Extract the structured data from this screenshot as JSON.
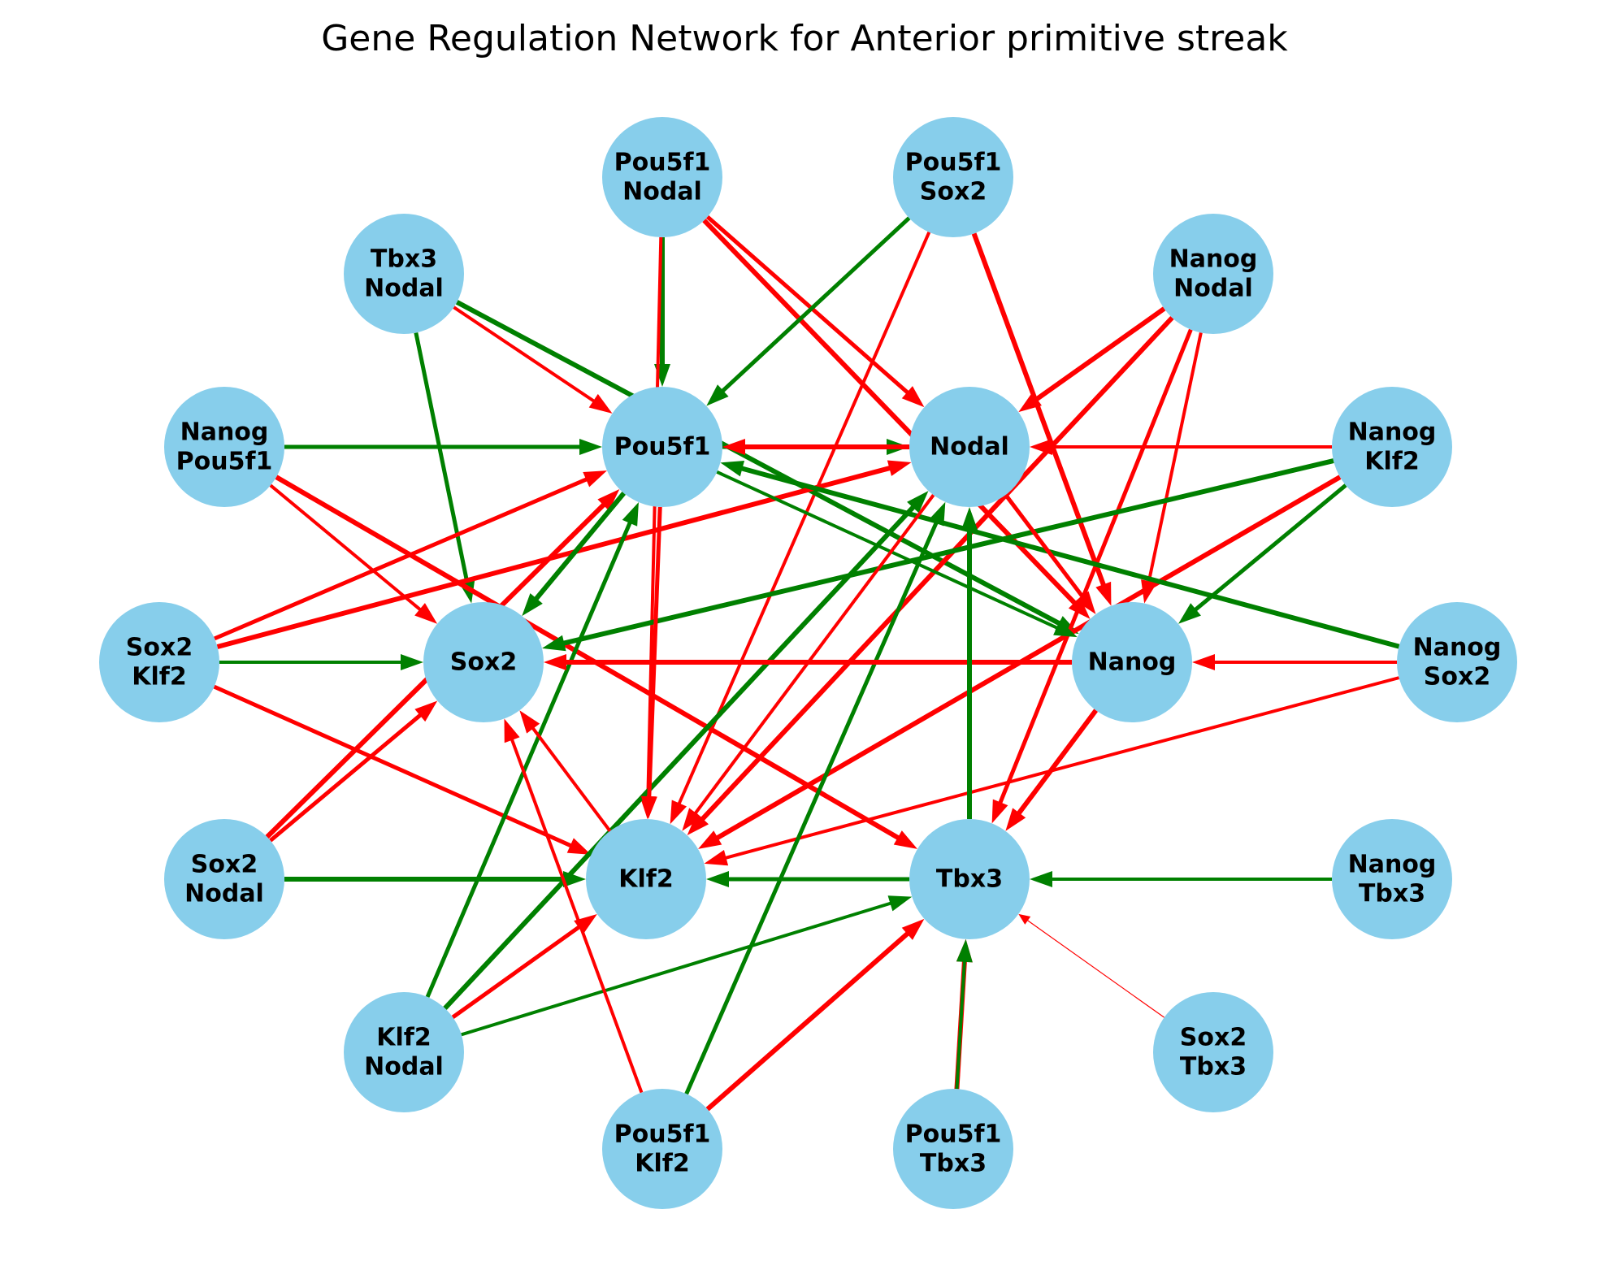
{
  "title": "Gene Regulation Network for Anterior primitive streak",
  "colors": {
    "node": "#87CEEB",
    "activation": "#008000",
    "repression": "#FF0000"
  },
  "nodes": [
    {
      "id": "Pou5f1",
      "lines": [
        "Pou5f1"
      ]
    },
    {
      "id": "Nodal",
      "lines": [
        "Nodal"
      ]
    },
    {
      "id": "Sox2",
      "lines": [
        "Sox2"
      ]
    },
    {
      "id": "Nanog",
      "lines": [
        "Nanog"
      ]
    },
    {
      "id": "Klf2",
      "lines": [
        "Klf2"
      ]
    },
    {
      "id": "Tbx3",
      "lines": [
        "Tbx3"
      ]
    },
    {
      "id": "Pou5f1_Nodal",
      "lines": [
        "Pou5f1",
        "Nodal"
      ]
    },
    {
      "id": "Pou5f1_Sox2",
      "lines": [
        "Pou5f1",
        "Sox2"
      ]
    },
    {
      "id": "Tbx3_Nodal",
      "lines": [
        "Tbx3",
        "Nodal"
      ]
    },
    {
      "id": "Nanog_Nodal",
      "lines": [
        "Nanog",
        "Nodal"
      ]
    },
    {
      "id": "Nanog_Pou5f1",
      "lines": [
        "Nanog",
        "Pou5f1"
      ]
    },
    {
      "id": "Nanog_Klf2",
      "lines": [
        "Nanog",
        "Klf2"
      ]
    },
    {
      "id": "Sox2_Klf2",
      "lines": [
        "Sox2",
        "Klf2"
      ]
    },
    {
      "id": "Nanog_Sox2",
      "lines": [
        "Nanog",
        "Sox2"
      ]
    },
    {
      "id": "Sox2_Nodal",
      "lines": [
        "Sox2",
        "Nodal"
      ]
    },
    {
      "id": "Nanog_Tbx3",
      "lines": [
        "Nanog",
        "Tbx3"
      ]
    },
    {
      "id": "Klf2_Nodal",
      "lines": [
        "Klf2",
        "Nodal"
      ]
    },
    {
      "id": "Sox2_Tbx3",
      "lines": [
        "Sox2",
        "Tbx3"
      ]
    },
    {
      "id": "Pou5f1_Klf2",
      "lines": [
        "Pou5f1",
        "Klf2"
      ]
    },
    {
      "id": "Pou5f1_Tbx3",
      "lines": [
        "Pou5f1",
        "Tbx3"
      ]
    }
  ],
  "edges": [
    {
      "from": "Pou5f1_Nodal",
      "to": "Pou5f1",
      "type": "activation"
    },
    {
      "from": "Pou5f1_Nodal",
      "to": "Klf2",
      "type": "repression"
    },
    {
      "from": "Pou5f1_Nodal",
      "to": "Nodal",
      "type": "repression"
    },
    {
      "from": "Pou5f1_Nodal",
      "to": "Nanog",
      "type": "repression"
    },
    {
      "from": "Pou5f1_Sox2",
      "to": "Pou5f1",
      "type": "activation"
    },
    {
      "from": "Pou5f1_Sox2",
      "to": "Klf2",
      "type": "repression"
    },
    {
      "from": "Pou5f1_Sox2",
      "to": "Nanog",
      "type": "repression"
    },
    {
      "from": "Tbx3_Nodal",
      "to": "Pou5f1",
      "type": "repression"
    },
    {
      "from": "Tbx3_Nodal",
      "to": "Sox2",
      "type": "activation"
    },
    {
      "from": "Tbx3_Nodal",
      "to": "Nanog",
      "type": "activation"
    },
    {
      "from": "Nanog_Nodal",
      "to": "Nodal",
      "type": "repression"
    },
    {
      "from": "Nanog_Nodal",
      "to": "Nanog",
      "type": "repression"
    },
    {
      "from": "Nanog_Nodal",
      "to": "Tbx3",
      "type": "repression"
    },
    {
      "from": "Nanog_Nodal",
      "to": "Klf2",
      "type": "repression"
    },
    {
      "from": "Nanog_Pou5f1",
      "to": "Pou5f1",
      "type": "activation"
    },
    {
      "from": "Nanog_Pou5f1",
      "to": "Sox2",
      "type": "repression"
    },
    {
      "from": "Nanog_Pou5f1",
      "to": "Tbx3",
      "type": "repression"
    },
    {
      "from": "Nanog_Klf2",
      "to": "Nodal",
      "type": "repression"
    },
    {
      "from": "Nanog_Klf2",
      "to": "Nanog",
      "type": "activation"
    },
    {
      "from": "Nanog_Klf2",
      "to": "Klf2",
      "type": "repression"
    },
    {
      "from": "Nanog_Klf2",
      "to": "Sox2",
      "type": "activation"
    },
    {
      "from": "Sox2_Klf2",
      "to": "Sox2",
      "type": "activation"
    },
    {
      "from": "Sox2_Klf2",
      "to": "Pou5f1",
      "type": "repression"
    },
    {
      "from": "Sox2_Klf2",
      "to": "Nodal",
      "type": "repression"
    },
    {
      "from": "Sox2_Klf2",
      "to": "Klf2",
      "type": "repression"
    },
    {
      "from": "Nanog_Sox2",
      "to": "Nanog",
      "type": "repression"
    },
    {
      "from": "Nanog_Sox2",
      "to": "Pou5f1",
      "type": "activation"
    },
    {
      "from": "Nanog_Sox2",
      "to": "Klf2",
      "type": "repression"
    },
    {
      "from": "Sox2_Nodal",
      "to": "Sox2",
      "type": "repression"
    },
    {
      "from": "Sox2_Nodal",
      "to": "Pou5f1",
      "type": "repression"
    },
    {
      "from": "Sox2_Nodal",
      "to": "Klf2",
      "type": "activation"
    },
    {
      "from": "Nanog_Tbx3",
      "to": "Tbx3",
      "type": "activation"
    },
    {
      "from": "Klf2_Nodal",
      "to": "Pou5f1",
      "type": "activation"
    },
    {
      "from": "Klf2_Nodal",
      "to": "Nodal",
      "type": "activation"
    },
    {
      "from": "Klf2_Nodal",
      "to": "Klf2",
      "type": "repression"
    },
    {
      "from": "Klf2_Nodal",
      "to": "Tbx3",
      "type": "activation"
    },
    {
      "from": "Sox2_Tbx3",
      "to": "Tbx3",
      "type": "repression"
    },
    {
      "from": "Pou5f1_Klf2",
      "to": "Sox2",
      "type": "repression"
    },
    {
      "from": "Pou5f1_Klf2",
      "to": "Nodal",
      "type": "activation"
    },
    {
      "from": "Pou5f1_Klf2",
      "to": "Tbx3",
      "type": "repression"
    },
    {
      "from": "Pou5f1_Tbx3",
      "to": "Tbx3",
      "type": "repression"
    },
    {
      "from": "Pou5f1_Tbx3",
      "to": "Tbx3",
      "type": "activation"
    },
    {
      "from": "Pou5f1",
      "to": "Nodal",
      "type": "activation"
    },
    {
      "from": "Pou5f1",
      "to": "Sox2",
      "type": "activation"
    },
    {
      "from": "Pou5f1",
      "to": "Klf2",
      "type": "repression"
    },
    {
      "from": "Pou5f1",
      "to": "Nanog",
      "type": "activation"
    },
    {
      "from": "Nodal",
      "to": "Pou5f1",
      "type": "repression"
    },
    {
      "from": "Nodal",
      "to": "Klf2",
      "type": "repression"
    },
    {
      "from": "Nodal",
      "to": "Nanog",
      "type": "repression"
    },
    {
      "from": "Nanog",
      "to": "Sox2",
      "type": "repression"
    },
    {
      "from": "Nanog",
      "to": "Tbx3",
      "type": "repression"
    },
    {
      "from": "Klf2",
      "to": "Sox2",
      "type": "repression"
    },
    {
      "from": "Tbx3",
      "to": "Klf2",
      "type": "activation"
    },
    {
      "from": "Tbx3",
      "to": "Nodal",
      "type": "activation"
    }
  ]
}
